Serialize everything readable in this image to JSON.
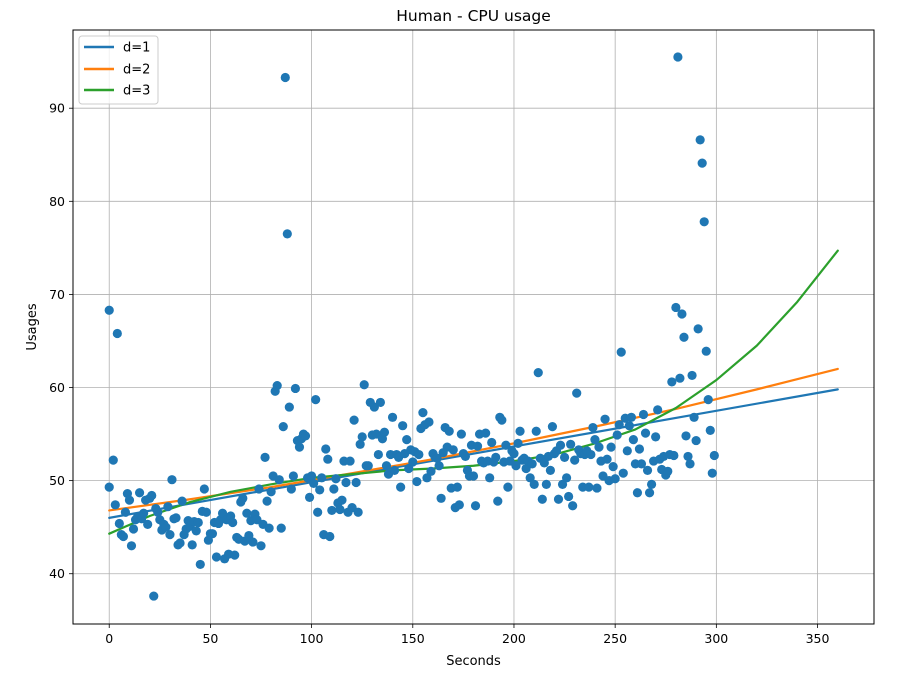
{
  "chart_data": {
    "type": "scatter",
    "title": "Human - CPU usage",
    "xlabel": "Seconds",
    "ylabel": "Usages",
    "xlim": [
      -17.9,
      377.9
    ],
    "ylim": [
      34.6,
      98.4
    ],
    "xticks": [
      0,
      50,
      100,
      150,
      200,
      250,
      300,
      350
    ],
    "yticks": [
      40,
      50,
      60,
      70,
      80,
      90
    ],
    "grid": true,
    "legend_position": "top-left",
    "colors": {
      "scatter": "#1f77b4",
      "d1": "#1f77b4",
      "d2": "#ff7f0e",
      "d3": "#2ca02c"
    },
    "series": [
      {
        "name": "d=1",
        "type": "line",
        "x": [
          0,
          360
        ],
        "y": [
          46.0,
          59.8
        ]
      },
      {
        "name": "d=2",
        "type": "line",
        "x": [
          0,
          40,
          80,
          120,
          160,
          200,
          240,
          280,
          320,
          360
        ],
        "y": [
          46.8,
          48.0,
          49.3,
          50.8,
          52.3,
          54.0,
          55.8,
          57.7,
          59.8,
          62.0
        ]
      },
      {
        "name": "d=3",
        "type": "line",
        "x": [
          0,
          20,
          40,
          60,
          80,
          100,
          120,
          140,
          160,
          180,
          200,
          220,
          240,
          260,
          280,
          300,
          320,
          340,
          360
        ],
        "y": [
          44.3,
          46.2,
          47.7,
          48.8,
          49.6,
          50.3,
          50.7,
          51.1,
          51.3,
          51.6,
          52.1,
          52.8,
          54.0,
          55.5,
          57.8,
          60.8,
          64.5,
          69.2,
          74.7
        ]
      }
    ],
    "points": [
      [
        0,
        68.3
      ],
      [
        0,
        49.3
      ],
      [
        2,
        52.2
      ],
      [
        3,
        47.4
      ],
      [
        4,
        65.8
      ],
      [
        5,
        45.4
      ],
      [
        6,
        44.2
      ],
      [
        7,
        44.0
      ],
      [
        8,
        46.6
      ],
      [
        9,
        48.6
      ],
      [
        10,
        47.9
      ],
      [
        11,
        43.0
      ],
      [
        12,
        44.8
      ],
      [
        13,
        45.8
      ],
      [
        14,
        46.1
      ],
      [
        15,
        48.7
      ],
      [
        16,
        45.9
      ],
      [
        17,
        46.5
      ],
      [
        18,
        47.9
      ],
      [
        19,
        45.3
      ],
      [
        20,
        48.1
      ],
      [
        21,
        48.4
      ],
      [
        22,
        37.6
      ],
      [
        23,
        47.0
      ],
      [
        24,
        46.6
      ],
      [
        25,
        45.8
      ],
      [
        26,
        44.7
      ],
      [
        27,
        45.3
      ],
      [
        28,
        45.0
      ],
      [
        29,
        47.2
      ],
      [
        30,
        44.2
      ],
      [
        31,
        50.1
      ],
      [
        32,
        45.9
      ],
      [
        33,
        46.0
      ],
      [
        34,
        43.1
      ],
      [
        35,
        43.3
      ],
      [
        36,
        47.8
      ],
      [
        37,
        44.2
      ],
      [
        38,
        44.8
      ],
      [
        39,
        45.7
      ],
      [
        40,
        45.1
      ],
      [
        41,
        43.1
      ],
      [
        42,
        45.6
      ],
      [
        43,
        44.6
      ],
      [
        44,
        45.5
      ],
      [
        45,
        41.0
      ],
      [
        46,
        46.7
      ],
      [
        47,
        49.1
      ],
      [
        48,
        46.6
      ],
      [
        49,
        43.6
      ],
      [
        50,
        44.3
      ],
      [
        51,
        44.3
      ],
      [
        52,
        45.5
      ],
      [
        53,
        41.8
      ],
      [
        54,
        45.4
      ],
      [
        55,
        45.8
      ],
      [
        56,
        46.5
      ],
      [
        57,
        41.6
      ],
      [
        58,
        45.8
      ],
      [
        59,
        42.1
      ],
      [
        60,
        46.2
      ],
      [
        61,
        45.5
      ],
      [
        62,
        42.0
      ],
      [
        63,
        43.9
      ],
      [
        64,
        43.7
      ],
      [
        65,
        47.7
      ],
      [
        66,
        48.1
      ],
      [
        67,
        43.5
      ],
      [
        68,
        46.5
      ],
      [
        69,
        44.1
      ],
      [
        70,
        45.7
      ],
      [
        71,
        43.4
      ],
      [
        72,
        46.4
      ],
      [
        73,
        45.8
      ],
      [
        74,
        49.1
      ],
      [
        75,
        43.0
      ],
      [
        76,
        45.3
      ],
      [
        77,
        52.5
      ],
      [
        78,
        47.8
      ],
      [
        79,
        44.9
      ],
      [
        80,
        48.8
      ],
      [
        81,
        50.5
      ],
      [
        82,
        59.6
      ],
      [
        83,
        60.2
      ],
      [
        84,
        50.1
      ],
      [
        85,
        44.9
      ],
      [
        86,
        55.8
      ],
      [
        87,
        93.3
      ],
      [
        88,
        76.5
      ],
      [
        89,
        57.9
      ],
      [
        90,
        49.1
      ],
      [
        91,
        50.5
      ],
      [
        92,
        59.9
      ],
      [
        93,
        54.3
      ],
      [
        94,
        53.6
      ],
      [
        95,
        54.5
      ],
      [
        96,
        55.0
      ],
      [
        97,
        54.8
      ],
      [
        98,
        50.3
      ],
      [
        99,
        48.2
      ],
      [
        100,
        50.5
      ],
      [
        101,
        49.7
      ],
      [
        102,
        58.7
      ],
      [
        103,
        46.6
      ],
      [
        104,
        49.0
      ],
      [
        105,
        50.3
      ],
      [
        106,
        44.2
      ],
      [
        107,
        53.4
      ],
      [
        108,
        52.3
      ],
      [
        109,
        44.0
      ],
      [
        110,
        46.8
      ],
      [
        111,
        49.1
      ],
      [
        112,
        50.2
      ],
      [
        113,
        47.6
      ],
      [
        114,
        46.9
      ],
      [
        115,
        47.9
      ],
      [
        116,
        52.1
      ],
      [
        117,
        49.8
      ],
      [
        118,
        46.6
      ],
      [
        119,
        52.1
      ],
      [
        120,
        47.1
      ],
      [
        121,
        56.5
      ],
      [
        122,
        49.8
      ],
      [
        123,
        46.6
      ],
      [
        124,
        53.9
      ],
      [
        125,
        54.7
      ],
      [
        126,
        60.3
      ],
      [
        127,
        51.6
      ],
      [
        128,
        51.6
      ],
      [
        129,
        58.4
      ],
      [
        130,
        54.9
      ],
      [
        131,
        57.9
      ],
      [
        132,
        55.0
      ],
      [
        133,
        52.8
      ],
      [
        134,
        58.4
      ],
      [
        135,
        54.5
      ],
      [
        136,
        55.2
      ],
      [
        137,
        51.6
      ],
      [
        138,
        50.7
      ],
      [
        139,
        52.8
      ],
      [
        140,
        56.8
      ],
      [
        141,
        51.1
      ],
      [
        142,
        52.8
      ],
      [
        143,
        52.5
      ],
      [
        144,
        49.3
      ],
      [
        145,
        55.9
      ],
      [
        146,
        52.9
      ],
      [
        147,
        54.4
      ],
      [
        148,
        51.3
      ],
      [
        149,
        53.3
      ],
      [
        150,
        52.0
      ],
      [
        151,
        53.1
      ],
      [
        152,
        49.9
      ],
      [
        153,
        52.8
      ],
      [
        154,
        55.6
      ],
      [
        155,
        57.3
      ],
      [
        156,
        56.0
      ],
      [
        157,
        50.3
      ],
      [
        158,
        56.3
      ],
      [
        159,
        51.0
      ],
      [
        160,
        52.9
      ],
      [
        161,
        52.5
      ],
      [
        162,
        52.4
      ],
      [
        163,
        51.6
      ],
      [
        164,
        48.1
      ],
      [
        165,
        53.0
      ],
      [
        166,
        55.7
      ],
      [
        167,
        53.6
      ],
      [
        168,
        55.3
      ],
      [
        169,
        49.2
      ],
      [
        170,
        53.3
      ],
      [
        171,
        47.1
      ],
      [
        172,
        49.3
      ],
      [
        173,
        47.4
      ],
      [
        174,
        55.0
      ],
      [
        175,
        52.9
      ],
      [
        176,
        52.6
      ],
      [
        177,
        51.1
      ],
      [
        178,
        50.5
      ],
      [
        179,
        53.8
      ],
      [
        180,
        50.5
      ],
      [
        181,
        47.3
      ],
      [
        182,
        53.7
      ],
      [
        183,
        55.0
      ],
      [
        184,
        52.1
      ],
      [
        185,
        51.9
      ],
      [
        186,
        55.1
      ],
      [
        187,
        52.1
      ],
      [
        188,
        50.3
      ],
      [
        189,
        54.1
      ],
      [
        190,
        52.0
      ],
      [
        191,
        52.5
      ],
      [
        192,
        47.8
      ],
      [
        193,
        56.8
      ],
      [
        194,
        56.5
      ],
      [
        195,
        52.0
      ],
      [
        196,
        53.8
      ],
      [
        197,
        49.3
      ],
      [
        198,
        52.1
      ],
      [
        199,
        53.2
      ],
      [
        200,
        52.9
      ],
      [
        201,
        51.6
      ],
      [
        202,
        54.0
      ],
      [
        203,
        55.3
      ],
      [
        204,
        52.2
      ],
      [
        205,
        52.4
      ],
      [
        206,
        51.3
      ],
      [
        207,
        52.1
      ],
      [
        208,
        50.3
      ],
      [
        209,
        51.8
      ],
      [
        210,
        49.6
      ],
      [
        211,
        55.3
      ],
      [
        212,
        61.6
      ],
      [
        213,
        52.4
      ],
      [
        214,
        48.0
      ],
      [
        215,
        51.9
      ],
      [
        216,
        49.6
      ],
      [
        217,
        52.6
      ],
      [
        218,
        51.1
      ],
      [
        219,
        55.8
      ],
      [
        220,
        52.9
      ],
      [
        221,
        53.2
      ],
      [
        222,
        48.0
      ],
      [
        223,
        53.8
      ],
      [
        224,
        49.6
      ],
      [
        225,
        52.5
      ],
      [
        226,
        50.3
      ],
      [
        227,
        48.3
      ],
      [
        228,
        53.9
      ],
      [
        229,
        47.3
      ],
      [
        230,
        52.2
      ],
      [
        231,
        59.4
      ],
      [
        232,
        53.3
      ],
      [
        233,
        52.9
      ],
      [
        234,
        49.3
      ],
      [
        235,
        52.8
      ],
      [
        236,
        53.2
      ],
      [
        237,
        49.3
      ],
      [
        238,
        52.8
      ],
      [
        239,
        55.7
      ],
      [
        240,
        54.4
      ],
      [
        241,
        49.2
      ],
      [
        242,
        53.6
      ],
      [
        243,
        52.1
      ],
      [
        244,
        50.5
      ],
      [
        245,
        56.6
      ],
      [
        246,
        52.3
      ],
      [
        247,
        50.0
      ],
      [
        248,
        53.6
      ],
      [
        249,
        51.5
      ],
      [
        250,
        50.2
      ],
      [
        251,
        54.9
      ],
      [
        252,
        56.0
      ],
      [
        253,
        63.8
      ],
      [
        254,
        50.8
      ],
      [
        255,
        56.7
      ],
      [
        256,
        53.2
      ],
      [
        257,
        55.9
      ],
      [
        258,
        56.8
      ],
      [
        259,
        54.4
      ],
      [
        260,
        51.8
      ],
      [
        261,
        48.7
      ],
      [
        262,
        53.4
      ],
      [
        263,
        51.8
      ],
      [
        264,
        57.1
      ],
      [
        265,
        55.1
      ],
      [
        266,
        51.1
      ],
      [
        267,
        48.7
      ],
      [
        268,
        49.6
      ],
      [
        269,
        52.1
      ],
      [
        270,
        54.7
      ],
      [
        271,
        57.6
      ],
      [
        272,
        52.3
      ],
      [
        273,
        51.2
      ],
      [
        274,
        52.6
      ],
      [
        275,
        50.6
      ],
      [
        276,
        51.0
      ],
      [
        277,
        52.8
      ],
      [
        278,
        60.6
      ],
      [
        279,
        52.7
      ],
      [
        280,
        68.6
      ],
      [
        281,
        95.5
      ],
      [
        282,
        61.0
      ],
      [
        283,
        67.9
      ],
      [
        284,
        65.4
      ],
      [
        285,
        54.8
      ],
      [
        286,
        52.6
      ],
      [
        287,
        51.8
      ],
      [
        288,
        61.3
      ],
      [
        289,
        56.8
      ],
      [
        290,
        54.3
      ],
      [
        291,
        66.3
      ],
      [
        292,
        86.6
      ],
      [
        293,
        84.1
      ],
      [
        294,
        77.8
      ],
      [
        295,
        63.9
      ],
      [
        296,
        58.7
      ],
      [
        297,
        55.4
      ],
      [
        298,
        50.8
      ],
      [
        299,
        52.7
      ]
    ]
  }
}
